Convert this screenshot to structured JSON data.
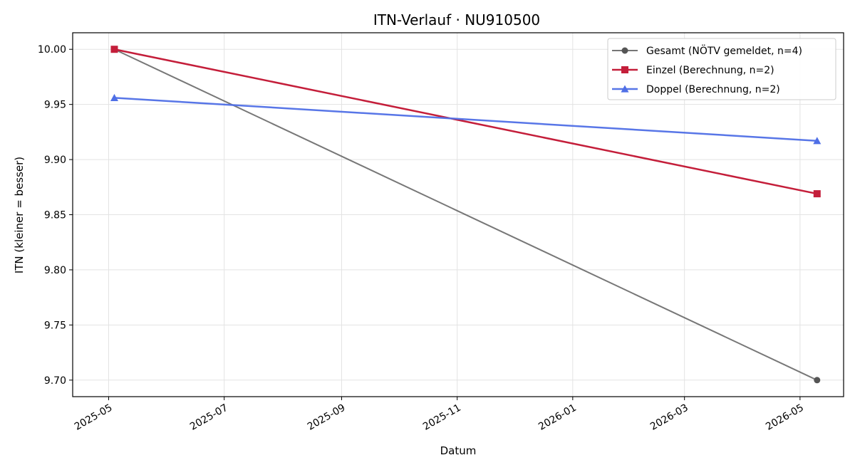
{
  "chart_data": {
    "type": "line",
    "title": "ITN-Verlauf · NU910500",
    "xlabel": "Datum",
    "ylabel": "ITN  (kleiner = besser)",
    "x_ticks": [
      "2025-05",
      "2025-07",
      "2025-09",
      "2025-11",
      "2026-01",
      "2026-03",
      "2026-05"
    ],
    "y_ticks": [
      9.7,
      9.75,
      9.8,
      9.85,
      9.9,
      9.95,
      10.0
    ],
    "xlim": [
      "2025-04-12",
      "2026-05-24"
    ],
    "ylim": [
      9.685,
      10.015
    ],
    "grid": true,
    "legend_position": "top-right",
    "series": [
      {
        "name": "Gesamt (NÖTV gemeldet, n=4)",
        "color": "#555555",
        "marker": "circle",
        "points": [
          {
            "x": "2025-05-04",
            "y": 10.0
          },
          {
            "x": "2026-05-10",
            "y": 9.7
          }
        ]
      },
      {
        "name": "Einzel (Berechnung, n=2)",
        "color": "#c41e3a",
        "marker": "square",
        "points": [
          {
            "x": "2025-05-04",
            "y": 10.0
          },
          {
            "x": "2026-05-10",
            "y": 9.869
          }
        ]
      },
      {
        "name": "Doppel (Berechnung, n=2)",
        "color": "#4f6fe6",
        "marker": "triangle",
        "points": [
          {
            "x": "2025-05-04",
            "y": 9.956
          },
          {
            "x": "2026-05-10",
            "y": 9.917
          }
        ]
      }
    ]
  }
}
